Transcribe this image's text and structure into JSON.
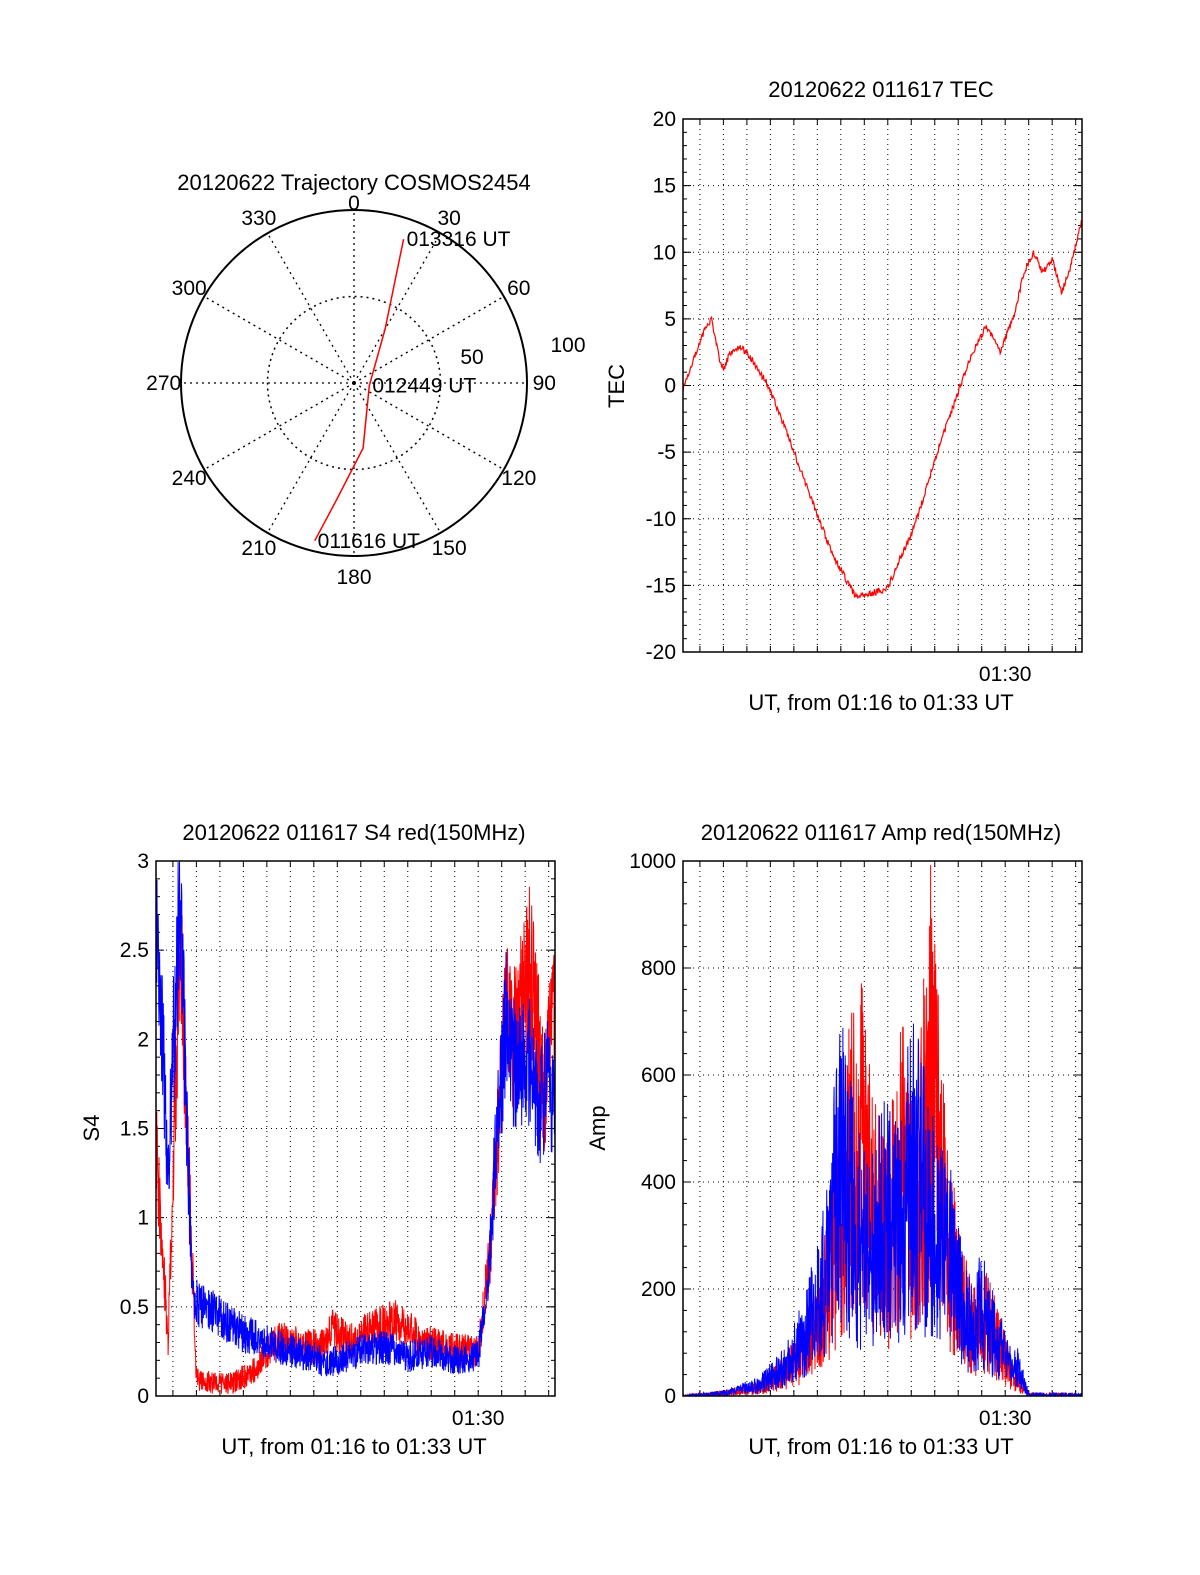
{
  "chart_data": [
    {
      "type": "polar",
      "title": "20120622 Trajectory COSMOS2454",
      "azimuth_labels": [
        "0",
        "30",
        "60",
        "90",
        "120",
        "150",
        "180",
        "210",
        "240",
        "270",
        "300",
        "330"
      ],
      "radial_labels": [
        "50",
        "100"
      ],
      "series": [
        {
          "color": "#ff0000",
          "points": [
            {
              "az": 194,
              "r": 94
            },
            {
              "az": 189,
              "r": 70
            },
            {
              "az": 172,
              "r": 38
            },
            {
              "az": 100,
              "r": 9
            },
            {
              "az": 30,
              "r": 36
            },
            {
              "az": 22,
              "r": 63
            },
            {
              "az": 19,
              "r": 88
            }
          ]
        }
      ],
      "annotations": [
        {
          "text": "013316 UT",
          "az": 19,
          "r": 88
        },
        {
          "text": "012449 UT",
          "az": 100,
          "r": 9
        },
        {
          "text": "011616 UT",
          "az": 194,
          "r": 94
        }
      ]
    },
    {
      "type": "line",
      "title": "20120622 011617 TEC",
      "xlabel": "UT, from 01:16 to 01:33 UT",
      "ylabel": "TEC",
      "xlim": [
        76.28,
        93.27
      ],
      "ylim": [
        -20,
        20
      ],
      "yticks": [
        -20,
        -15,
        -10,
        -5,
        0,
        5,
        10,
        15,
        20
      ],
      "xticks": [
        {
          "value": 90,
          "label": "01:30"
        }
      ],
      "grid": true,
      "series": [
        {
          "color": "#ff0000",
          "x": [
            76.28,
            76.7,
            77.1,
            77.5,
            77.8,
            78.0,
            78.3,
            78.7,
            79.2,
            79.9,
            80.7,
            81.6,
            82.6,
            83.6,
            84.5,
            85.0,
            85.5,
            86.0,
            86.5,
            87.1,
            87.8,
            88.5,
            89.2,
            89.8,
            90.4,
            90.8,
            91.2,
            91.6,
            92.0,
            92.4,
            92.8,
            93.27
          ],
          "y": [
            -0.3,
            1.8,
            3.8,
            5.0,
            2.2,
            1.2,
            2.5,
            3.0,
            2.0,
            0.0,
            -3.5,
            -7.8,
            -12.5,
            -15.8,
            -15.5,
            -15.2,
            -13.0,
            -11.2,
            -8.5,
            -5.0,
            -1.5,
            2.0,
            4.5,
            2.5,
            5.5,
            8.5,
            10.0,
            8.5,
            9.5,
            7.0,
            9.0,
            12.5
          ]
        }
      ]
    },
    {
      "type": "line",
      "title": "20120622 011617 S4 red(150MHz)",
      "xlabel": "UT, from 01:16 to 01:33 UT",
      "ylabel": "S4",
      "xlim": [
        76.28,
        93.27
      ],
      "ylim": [
        0,
        3
      ],
      "yticks": [
        0,
        0.5,
        1,
        1.5,
        2,
        2.5,
        3
      ],
      "ytick_labels": [
        "0",
        "0.5",
        "1",
        "1.5",
        "2",
        "2.5",
        "3"
      ],
      "xticks": [
        {
          "value": 90,
          "label": "01:30"
        }
      ],
      "grid": true,
      "series": [
        {
          "color": "#ff0000",
          "x": [
            76.3,
            76.8,
            77.3,
            78.0,
            78.2,
            79.5,
            80.5,
            81.5,
            82.5,
            83.3,
            83.8,
            84.5,
            85.5,
            86.5,
            87.5,
            88.3,
            89.0,
            90.0,
            90.5,
            90.9,
            91.2,
            91.5,
            92.2,
            92.8,
            93.27
          ],
          "y": [
            1.4,
            0.3,
            2.6,
            0.12,
            0.08,
            0.07,
            0.15,
            0.32,
            0.28,
            0.28,
            0.38,
            0.3,
            0.38,
            0.42,
            0.32,
            0.28,
            0.26,
            0.25,
            0.8,
            1.6,
            2.2,
            2.0,
            2.4,
            1.7,
            2.2
          ]
        },
        {
          "color": "#0000ff",
          "x": [
            76.3,
            76.8,
            77.3,
            77.8,
            78.2,
            79.0,
            80.0,
            81.0,
            82.0,
            83.0,
            83.5,
            84.0,
            85.0,
            86.0,
            87.0,
            88.0,
            89.0,
            90.0,
            90.4,
            90.8,
            91.2,
            91.6,
            92.1,
            92.6,
            93.0,
            93.27
          ],
          "y": [
            2.8,
            1.2,
            2.9,
            0.6,
            0.5,
            0.45,
            0.35,
            0.3,
            0.25,
            0.22,
            0.18,
            0.2,
            0.25,
            0.28,
            0.22,
            0.25,
            0.2,
            0.22,
            0.6,
            1.5,
            2.1,
            1.8,
            1.9,
            1.6,
            1.8,
            1.5
          ]
        }
      ]
    },
    {
      "type": "line",
      "title": "20120622 011617 Amp red(150MHz)",
      "xlabel": "UT, from 01:16 to 01:33 UT",
      "ylabel": "Amp",
      "xlim": [
        76.28,
        93.27
      ],
      "ylim": [
        0,
        1000
      ],
      "yticks": [
        0,
        200,
        400,
        600,
        800,
        1000
      ],
      "xticks": [
        {
          "value": 90,
          "label": "01:30"
        }
      ],
      "grid": true,
      "series": [
        {
          "color": "#ff0000",
          "x": [
            76.3,
            78.0,
            79.5,
            80.5,
            81.5,
            82.5,
            83.2,
            83.8,
            84.4,
            85.0,
            85.6,
            86.2,
            86.8,
            87.4,
            88.0,
            88.6,
            89.2,
            89.8,
            90.3,
            91.0,
            93.27
          ],
          "y": [
            0,
            5,
            15,
            40,
            80,
            220,
            380,
            480,
            330,
            280,
            420,
            310,
            600,
            330,
            190,
            120,
            140,
            90,
            40,
            3,
            2
          ]
        },
        {
          "color": "#0000ff",
          "x": [
            76.3,
            78.0,
            79.5,
            80.5,
            81.5,
            82.5,
            83.0,
            83.6,
            84.2,
            84.8,
            85.4,
            86.0,
            86.6,
            87.2,
            87.8,
            88.4,
            89.0,
            89.6,
            90.1,
            90.5,
            91.0,
            93.27
          ],
          "y": [
            0,
            5,
            20,
            50,
            110,
            260,
            450,
            310,
            260,
            330,
            300,
            430,
            360,
            280,
            240,
            130,
            160,
            110,
            60,
            55,
            3,
            2
          ]
        }
      ]
    }
  ]
}
